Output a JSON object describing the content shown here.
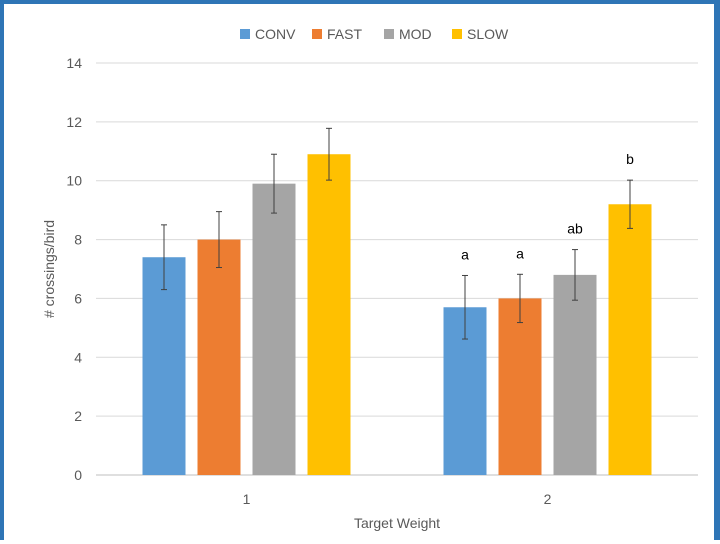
{
  "chart_data": {
    "type": "bar",
    "categories": [
      "1",
      "2"
    ],
    "series": [
      {
        "name": "CONV",
        "color": "#5b9bd5",
        "values": [
          7.4,
          5.7
        ],
        "errors": [
          1.1,
          1.08
        ]
      },
      {
        "name": "FAST",
        "color": "#ed7d31",
        "values": [
          8.0,
          6.0
        ],
        "errors": [
          0.95,
          0.82
        ]
      },
      {
        "name": "MOD",
        "color": "#a5a5a5",
        "values": [
          9.9,
          6.8
        ],
        "errors": [
          1.0,
          0.86
        ]
      },
      {
        "name": "SLOW",
        "color": "#ffc000",
        "values": [
          10.9,
          9.2
        ],
        "errors": [
          0.88,
          0.82
        ]
      }
    ],
    "significance_labels": [
      [
        "",
        "",
        "",
        ""
      ],
      [
        "a",
        "a",
        "ab",
        "b"
      ]
    ],
    "xlabel": "Target Weight",
    "ylabel": "# crossings/bird",
    "ylim": [
      0,
      14
    ],
    "yticks": [
      "0",
      "2",
      "4",
      "6",
      "8",
      "10",
      "12",
      "14"
    ],
    "grid": true,
    "legend_position": "top"
  }
}
